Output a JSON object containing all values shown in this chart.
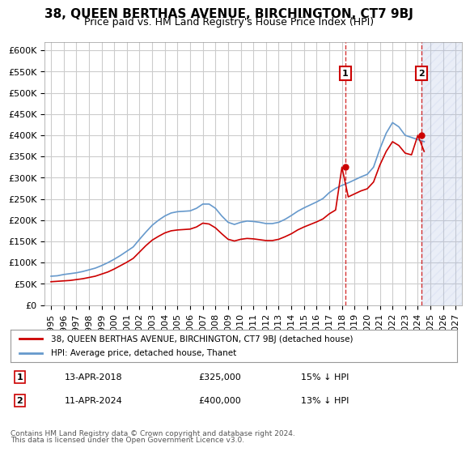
{
  "title": "38, QUEEN BERTHAS AVENUE, BIRCHINGTON, CT7 9BJ",
  "subtitle": "Price paid vs. HM Land Registry's House Price Index (HPI)",
  "ylabel_ticks": [
    0,
    50000,
    100000,
    150000,
    200000,
    250000,
    300000,
    350000,
    400000,
    450000,
    500000,
    550000,
    600000
  ],
  "ylabel_labels": [
    "£0",
    "£50K",
    "£100K",
    "£150K",
    "£200K",
    "£250K",
    "£300K",
    "£350K",
    "£400K",
    "£450K",
    "£500K",
    "£550K",
    "£600K"
  ],
  "xlim": [
    1994.5,
    2027.5
  ],
  "ylim": [
    0,
    620000
  ],
  "xticklabels": [
    "1995",
    "1996",
    "1997",
    "1998",
    "1999",
    "2000",
    "2001",
    "2002",
    "2003",
    "2004",
    "2005",
    "2006",
    "2007",
    "2008",
    "2009",
    "2010",
    "2011",
    "2012",
    "2013",
    "2014",
    "2015",
    "2016",
    "2017",
    "2018",
    "2019",
    "2020",
    "2021",
    "2022",
    "2023",
    "2024",
    "2025",
    "2026",
    "2027"
  ],
  "hpi_x": [
    1995,
    1995.5,
    1996,
    1996.5,
    1997,
    1997.5,
    1998,
    1998.5,
    1999,
    1999.5,
    2000,
    2000.5,
    2001,
    2001.5,
    2002,
    2002.5,
    2003,
    2003.5,
    2004,
    2004.5,
    2005,
    2005.5,
    2006,
    2006.5,
    2007,
    2007.5,
    2008,
    2008.5,
    2009,
    2009.5,
    2010,
    2010.5,
    2011,
    2011.5,
    2012,
    2012.5,
    2013,
    2013.5,
    2014,
    2014.5,
    2015,
    2015.5,
    2016,
    2016.5,
    2017,
    2017.5,
    2018,
    2018.5,
    2019,
    2019.5,
    2020,
    2020.5,
    2021,
    2021.5,
    2022,
    2022.5,
    2023,
    2023.5,
    2024,
    2024.5
  ],
  "hpi_y": [
    68000,
    69000,
    72000,
    74000,
    76000,
    79000,
    83000,
    87000,
    93000,
    100000,
    108000,
    117000,
    127000,
    137000,
    155000,
    172000,
    188000,
    200000,
    210000,
    217000,
    220000,
    221000,
    222000,
    228000,
    238000,
    238000,
    228000,
    210000,
    195000,
    190000,
    195000,
    198000,
    197000,
    195000,
    192000,
    192000,
    195000,
    202000,
    211000,
    221000,
    229000,
    236000,
    243000,
    251000,
    265000,
    275000,
    282000,
    288000,
    295000,
    302000,
    308000,
    325000,
    368000,
    405000,
    430000,
    420000,
    400000,
    395000,
    390000,
    385000
  ],
  "property_x": [
    1995,
    1995.5,
    1996,
    1996.5,
    1997,
    1997.5,
    1998,
    1998.5,
    1999,
    1999.5,
    2000,
    2000.5,
    2001,
    2001.5,
    2002,
    2002.5,
    2003,
    2003.5,
    2004,
    2004.5,
    2005,
    2005.5,
    2006,
    2006.5,
    2007,
    2007.5,
    2008,
    2008.5,
    2009,
    2009.5,
    2010,
    2010.5,
    2011,
    2011.5,
    2012,
    2012.5,
    2013,
    2013.5,
    2014,
    2014.5,
    2015,
    2015.5,
    2016,
    2016.5,
    2017,
    2017.5,
    2018,
    2018.5,
    2019,
    2019.5,
    2020,
    2020.5,
    2021,
    2021.5,
    2022,
    2022.5,
    2023,
    2023.5,
    2024,
    2024.5
  ],
  "property_y": [
    55000,
    56000,
    57000,
    58000,
    60000,
    62000,
    65000,
    68000,
    73000,
    78000,
    85000,
    93000,
    101000,
    110000,
    125000,
    140000,
    153000,
    162000,
    170000,
    175000,
    177000,
    178000,
    179000,
    184000,
    193000,
    191000,
    182000,
    168000,
    155000,
    151000,
    155000,
    157000,
    156000,
    154000,
    152000,
    152000,
    155000,
    161000,
    168000,
    177000,
    184000,
    190000,
    196000,
    203000,
    215000,
    224000,
    325000,
    255000,
    262000,
    269000,
    274000,
    290000,
    330000,
    362000,
    385000,
    376000,
    358000,
    354000,
    400000,
    362000
  ],
  "sale1_x": 2018.28,
  "sale1_y": 325000,
  "sale1_label": "1",
  "sale2_x": 2024.28,
  "sale2_y": 400000,
  "sale2_label": "2",
  "vline1_x": 2018.28,
  "vline2_x": 2024.28,
  "hatch_start": 2024.28,
  "hatch_end": 2027.5,
  "line_color_property": "#cc0000",
  "line_color_hpi": "#6699cc",
  "hatch_color": "#aabbdd",
  "background_color": "#ffffff",
  "grid_color": "#cccccc",
  "legend_label_property": "38, QUEEN BERTHAS AVENUE, BIRCHINGTON, CT7 9BJ (detached house)",
  "legend_label_hpi": "HPI: Average price, detached house, Thanet",
  "annotation1_date": "13-APR-2018",
  "annotation1_price": "£325,000",
  "annotation1_pct": "15% ↓ HPI",
  "annotation2_date": "11-APR-2024",
  "annotation2_price": "£400,000",
  "annotation2_pct": "13% ↓ HPI",
  "footer": "Contains HM Land Registry data © Crown copyright and database right 2024.\nThis data is licensed under the Open Government Licence v3.0.",
  "title_fontsize": 11,
  "subtitle_fontsize": 9,
  "tick_fontsize": 8
}
